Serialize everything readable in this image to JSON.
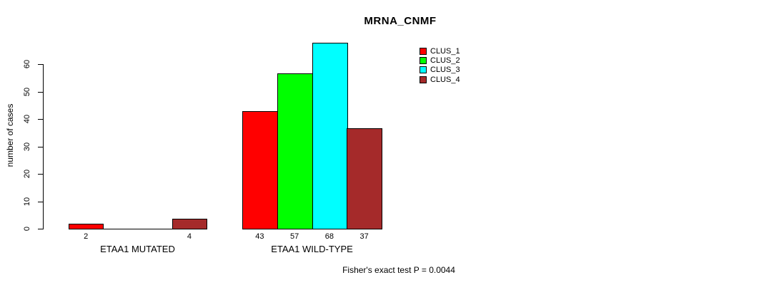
{
  "title": "MRNA_CNMF",
  "chart_data": {
    "type": "bar",
    "title": "MRNA_CNMF",
    "xlabel": "",
    "ylabel": "number of cases",
    "ylim": [
      0,
      60
    ],
    "yticks": [
      0,
      10,
      20,
      30,
      40,
      50,
      60
    ],
    "grid": false,
    "legend_position": "top-right",
    "legend": [
      {
        "name": "CLUS_1",
        "color": "#FF0000"
      },
      {
        "name": "CLUS_2",
        "color": "#00FF00"
      },
      {
        "name": "CLUS_3",
        "color": "#00FFFF"
      },
      {
        "name": "CLUS_4",
        "color": "#A52A2A"
      }
    ],
    "categories": [
      "ETAA1 MUTATED",
      "ETAA1 WILD-TYPE"
    ],
    "series": [
      {
        "name": "CLUS_1",
        "values": [
          2,
          43
        ]
      },
      {
        "name": "CLUS_2",
        "values": [
          0,
          57
        ]
      },
      {
        "name": "CLUS_3",
        "values": [
          0,
          68
        ]
      },
      {
        "name": "CLUS_4",
        "values": [
          4,
          37
        ]
      }
    ],
    "bar_value_labels_shown": [
      "2",
      "4",
      "43",
      "57",
      "68",
      "37"
    ],
    "annotation": "Fisher's exact test P = 0.0044"
  }
}
